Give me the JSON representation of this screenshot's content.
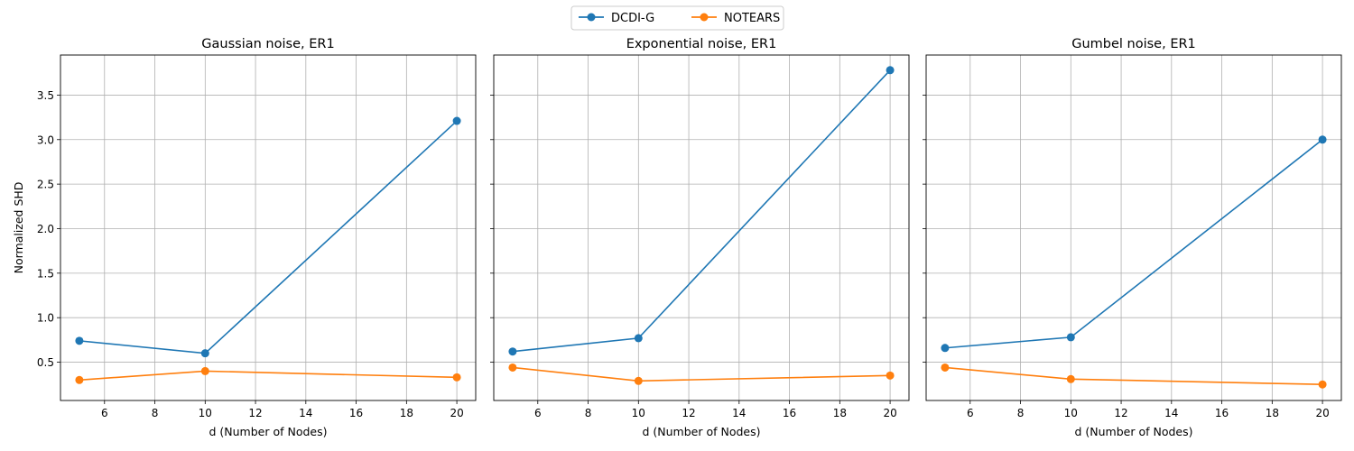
{
  "legend": {
    "placement": "top-center",
    "entries": [
      {
        "label": "DCDI-G",
        "color": "#1f77b4"
      },
      {
        "label": "NOTEARS",
        "color": "#ff7f0e"
      }
    ]
  },
  "chart_data": [
    {
      "type": "line",
      "title": "Gaussian noise, ER1",
      "xlabel": "d (Number of Nodes)",
      "ylabel": "Normalized SHD",
      "x": [
        5,
        10,
        20
      ],
      "xlim": [
        4.25,
        20.75
      ],
      "ylim": [
        0.07,
        3.95
      ],
      "xticks": [
        6,
        8,
        10,
        12,
        14,
        16,
        18,
        20
      ],
      "yticks": [
        0.5,
        1.0,
        1.5,
        2.0,
        2.5,
        3.0,
        3.5
      ],
      "grid": true,
      "series": [
        {
          "name": "DCDI-G",
          "color": "#1f77b4",
          "values": [
            0.74,
            0.6,
            3.21
          ]
        },
        {
          "name": "NOTEARS",
          "color": "#ff7f0e",
          "values": [
            0.3,
            0.4,
            0.33
          ]
        }
      ]
    },
    {
      "type": "line",
      "title": "Exponential noise, ER1",
      "xlabel": "d (Number of Nodes)",
      "ylabel": "",
      "x": [
        5,
        10,
        20
      ],
      "xlim": [
        4.25,
        20.75
      ],
      "ylim": [
        0.07,
        3.95
      ],
      "xticks": [
        6,
        8,
        10,
        12,
        14,
        16,
        18,
        20
      ],
      "yticks": [
        0.5,
        1.0,
        1.5,
        2.0,
        2.5,
        3.0,
        3.5
      ],
      "grid": true,
      "series": [
        {
          "name": "DCDI-G",
          "color": "#1f77b4",
          "values": [
            0.62,
            0.77,
            3.78
          ]
        },
        {
          "name": "NOTEARS",
          "color": "#ff7f0e",
          "values": [
            0.44,
            0.29,
            0.35
          ]
        }
      ]
    },
    {
      "type": "line",
      "title": "Gumbel noise, ER1",
      "xlabel": "d (Number of Nodes)",
      "ylabel": "",
      "x": [
        5,
        10,
        20
      ],
      "xlim": [
        4.25,
        20.75
      ],
      "ylim": [
        0.07,
        3.95
      ],
      "xticks": [
        6,
        8,
        10,
        12,
        14,
        16,
        18,
        20
      ],
      "yticks": [
        0.5,
        1.0,
        1.5,
        2.0,
        2.5,
        3.0,
        3.5
      ],
      "grid": true,
      "series": [
        {
          "name": "DCDI-G",
          "color": "#1f77b4",
          "values": [
            0.66,
            0.78,
            3.0
          ]
        },
        {
          "name": "NOTEARS",
          "color": "#ff7f0e",
          "values": [
            0.44,
            0.31,
            0.25
          ]
        }
      ]
    }
  ]
}
